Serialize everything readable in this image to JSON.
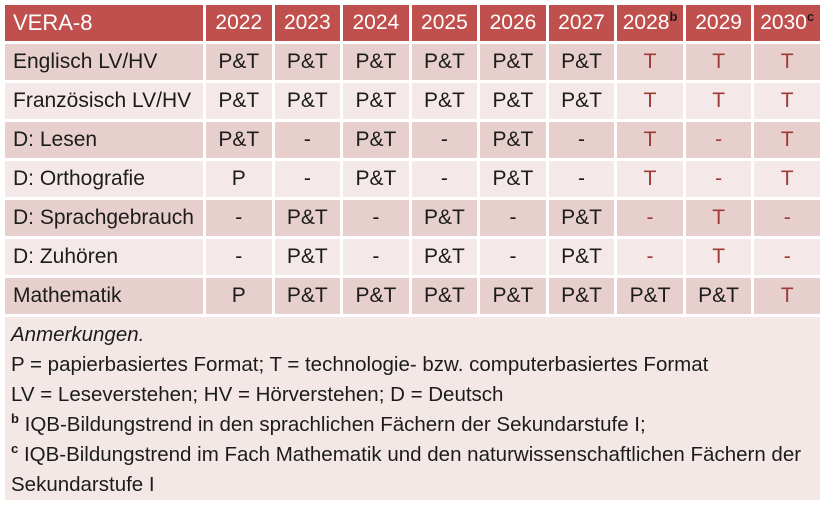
{
  "table": {
    "corner_label": "VERA-8",
    "header": {
      "years": [
        {
          "text": "2022",
          "sup": ""
        },
        {
          "text": "2023",
          "sup": ""
        },
        {
          "text": "2024",
          "sup": ""
        },
        {
          "text": "2025",
          "sup": ""
        },
        {
          "text": "2026",
          "sup": ""
        },
        {
          "text": "2027",
          "sup": ""
        },
        {
          "text": "2028",
          "sup": "b"
        },
        {
          "text": "2029",
          "sup": ""
        },
        {
          "text": "2030",
          "sup": "c"
        }
      ]
    },
    "rows": [
      {
        "label": "Englisch LV/HV",
        "cells": [
          "P&T",
          "P&T",
          "P&T",
          "P&T",
          "P&T",
          "P&T",
          "T",
          "T",
          "T"
        ]
      },
      {
        "label": "Französisch LV/HV",
        "cells": [
          "P&T",
          "P&T",
          "P&T",
          "P&T",
          "P&T",
          "P&T",
          "T",
          "T",
          "T"
        ]
      },
      {
        "label": "D: Lesen",
        "cells": [
          "P&T",
          "-",
          "P&T",
          "-",
          "P&T",
          "-",
          "T",
          "-",
          "T"
        ]
      },
      {
        "label": "D: Orthografie",
        "cells": [
          "P",
          "-",
          "P&T",
          "-",
          "P&T",
          "-",
          "T",
          "-",
          "T"
        ]
      },
      {
        "label": "D: Sprachgebrauch",
        "cells": [
          "-",
          "P&T",
          "-",
          "P&T",
          "-",
          "P&T",
          "-",
          "T",
          "-"
        ]
      },
      {
        "label": "D: Zuhören",
        "cells": [
          "-",
          "P&T",
          "-",
          "P&T",
          "-",
          "P&T",
          "-",
          "T",
          "-"
        ]
      },
      {
        "label": "Mathematik",
        "cells": [
          "P",
          "P&T",
          "P&T",
          "P&T",
          "P&T",
          "P&T",
          "P&T",
          "P&T",
          "T"
        ]
      }
    ],
    "tech_columns_start_index": 6
  },
  "notes": {
    "title": "Anmerkungen.",
    "lines": [
      {
        "sup": "",
        "text": "P = papierbasiertes Format; T = technologie- bzw. computerbasiertes Format"
      },
      {
        "sup": "",
        "text": "LV = Leseverstehen; HV = Hörverstehen; D = Deutsch"
      },
      {
        "sup": "b",
        "text": "IQB-Bildungstrend in den sprachlichen Fächern der Sekundarstufe I;"
      },
      {
        "sup": "c",
        "text": "IQB-Bildungstrend im Fach Mathematik und den naturwissenschaftlichen Fächern der Sekundarstufe I"
      }
    ]
  },
  "colors": {
    "header_bg": "#C0504D",
    "header_text": "#FFFFFF",
    "sup_text": "#1A1A1A",
    "row_dark": "#E6CFCD",
    "row_light": "#F4E9E8",
    "notes_bg": "#F3E8E6",
    "text": "#1C1C1C",
    "tech_text": "#9E3B36",
    "grid": "#FFFFFF"
  }
}
